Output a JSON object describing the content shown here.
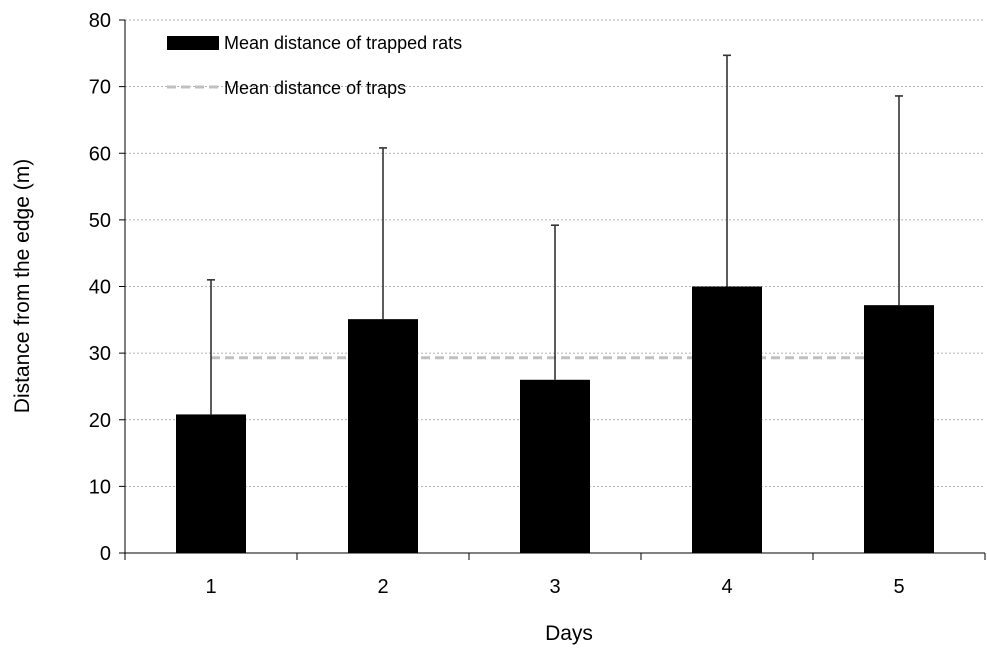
{
  "chart_data": {
    "type": "bar",
    "categories": [
      "1",
      "2",
      "3",
      "4",
      "5"
    ],
    "series": [
      {
        "name": "Mean distance of trapped rats",
        "values": [
          20.8,
          35.1,
          26.0,
          40.0,
          37.2
        ],
        "error_upper": [
          41.0,
          60.8,
          49.2,
          74.7,
          68.6
        ],
        "color": "#000000"
      }
    ],
    "reference_line": {
      "name": "Mean distance of traps",
      "value": 29.3,
      "color": "#c0c0c0",
      "style": "dashed"
    },
    "xlabel": "Days",
    "ylabel": "Distance from the edge  (m)",
    "ylim": [
      0,
      80
    ],
    "yticks": [
      0,
      10,
      20,
      30,
      40,
      50,
      60,
      70,
      80
    ],
    "grid": true,
    "legend_position": "top-left"
  }
}
